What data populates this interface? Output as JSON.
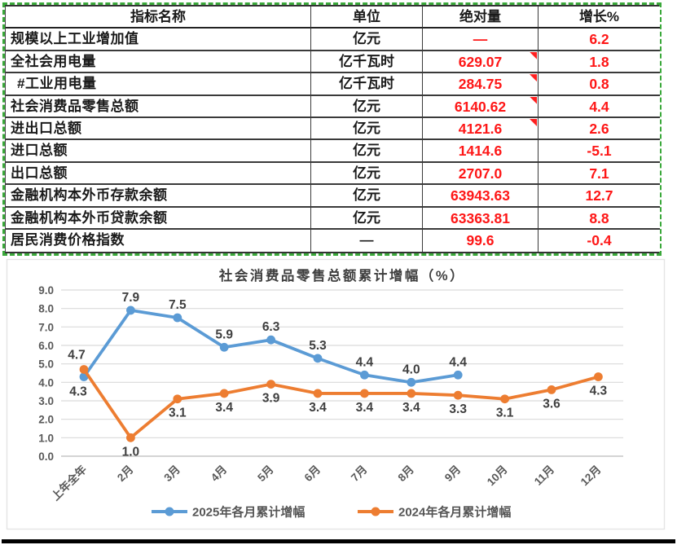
{
  "colors": {
    "series_2025_blue": "#5B9BD5",
    "series_2024_orange": "#ED7D31",
    "value_red": "#fe1616",
    "copy_border_green": "#3aa83a",
    "grid_gray": "#D9D9D9",
    "axis_text_gray": "#595959",
    "label_dark_gray": "#3f3f3f"
  },
  "table": {
    "headers": [
      "指标名称",
      "单位",
      "绝对量",
      "增长%"
    ],
    "rows": [
      {
        "name": "规模以上工业增加值",
        "unit": "亿元",
        "value": "—",
        "growth": "6.2",
        "note": false,
        "indent": false
      },
      {
        "name": "全社会用电量",
        "unit": "亿千瓦时",
        "value": "629.07",
        "growth": "1.8",
        "note": true,
        "indent": false
      },
      {
        "name": "#工业用电量",
        "unit": "亿千瓦时",
        "value": "284.75",
        "growth": "0.8",
        "note": true,
        "indent": true
      },
      {
        "name": "社会消费品零售总额",
        "unit": "亿元",
        "value": "6140.62",
        "growth": "4.4",
        "note": true,
        "indent": false
      },
      {
        "name": "进出口总额",
        "unit": "亿元",
        "value": "4121.6",
        "growth": "2.6",
        "note": true,
        "indent": false
      },
      {
        "name": "进口总额",
        "unit": "亿元",
        "value": "1414.6",
        "growth": "-5.1",
        "note": false,
        "indent": false
      },
      {
        "name": "出口总额",
        "unit": "亿元",
        "value": "2707.0",
        "growth": "7.1",
        "note": false,
        "indent": false
      },
      {
        "name": "金融机构本外币存款余额",
        "unit": "亿元",
        "value": "63943.63",
        "growth": "12.7",
        "note": false,
        "indent": false
      },
      {
        "name": "金融机构本外币贷款余额",
        "unit": "亿元",
        "value": "63363.81",
        "growth": "8.8",
        "note": false,
        "indent": false
      },
      {
        "name": "居民消费价格指数",
        "unit": "—",
        "value": "99.6",
        "growth": "-0.4",
        "note": false,
        "indent": false
      }
    ]
  },
  "chart_data": {
    "type": "line",
    "title": "社会消费品零售总额累计增幅（%）",
    "categories": [
      "上年全年",
      "2月",
      "3月",
      "4月",
      "5月",
      "6月",
      "7月",
      "8月",
      "9月",
      "10月",
      "11月",
      "12月"
    ],
    "series": [
      {
        "name": "2025年各月累计增幅",
        "color": "#5B9BD5",
        "values": [
          4.3,
          7.9,
          7.5,
          5.9,
          6.3,
          5.3,
          4.4,
          4.0,
          4.4
        ]
      },
      {
        "name": "2024年各月累计增幅",
        "color": "#ED7D31",
        "values": [
          4.7,
          1.0,
          3.1,
          3.4,
          3.9,
          3.4,
          3.4,
          3.4,
          3.3,
          3.1,
          3.6,
          4.3
        ]
      }
    ],
    "ylim": [
      0,
      9
    ],
    "ytick_step": 1,
    "ytick_labels": [
      "0.0",
      "1.0",
      "2.0",
      "3.0",
      "4.0",
      "5.0",
      "6.0",
      "7.0",
      "8.0",
      "9.0"
    ],
    "grid": true,
    "legend_position": "bottom",
    "xlabel": "",
    "ylabel": ""
  }
}
